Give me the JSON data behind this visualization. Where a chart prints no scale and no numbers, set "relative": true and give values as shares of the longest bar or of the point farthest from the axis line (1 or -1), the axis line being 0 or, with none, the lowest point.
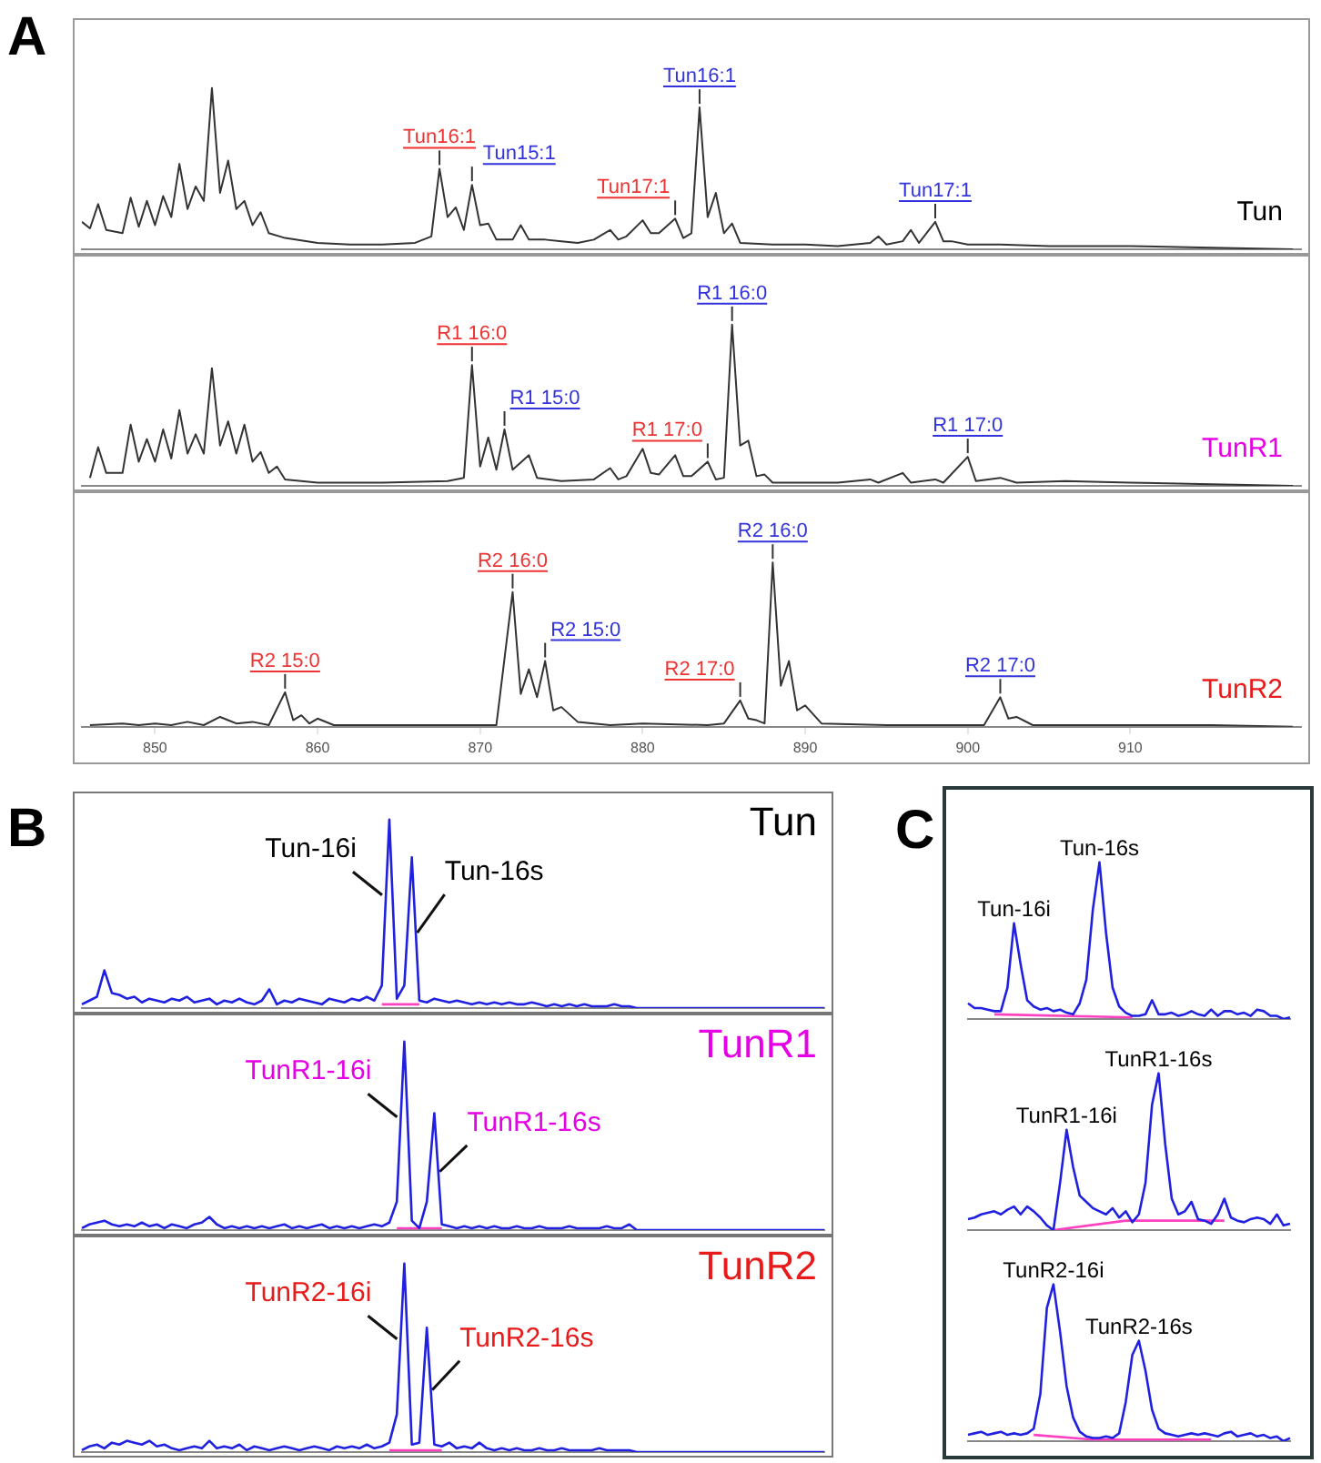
{
  "chart_data": [
    {
      "type": "line",
      "relative": true,
      "tick_labels": false,
      "marker": "none",
      "title": "A",
      "xlim": [
        845.5,
        920.5
      ],
      "xticks": [
        850,
        860,
        870,
        880,
        890,
        900,
        910
      ],
      "annotations": [
        {
          "text": "Tun16:1",
          "x": 867.5,
          "y": 0.5
        },
        {
          "text": "Tun15:1",
          "x": 869.5,
          "y": 0.4
        },
        {
          "text": "Tun17:1",
          "x": 882,
          "y": 0.19
        },
        {
          "text": "Tun16:1",
          "x": 883.5,
          "y": 0.88
        },
        {
          "text": "Tun17:1",
          "x": 898,
          "y": 0.17
        }
      ],
      "series": [
        {
          "name": "Tun",
          "color": "#333333",
          "x": [
            845.5,
            846,
            846.5,
            847,
            848,
            848.5,
            849,
            849.5,
            850,
            850.5,
            851,
            851.5,
            852,
            852.5,
            853,
            853.5,
            854,
            854.5,
            855,
            855.5,
            856,
            856.5,
            857,
            858,
            860,
            862,
            864,
            866,
            867,
            867.5,
            868,
            868.5,
            869,
            869.5,
            870,
            870.5,
            871,
            872,
            872.5,
            873,
            874,
            875,
            876,
            877,
            878,
            878.5,
            879,
            880,
            880.5,
            881,
            882,
            882.5,
            883,
            883.5,
            884,
            884.5,
            885,
            885.5,
            886,
            888,
            890,
            892,
            894,
            894.5,
            895,
            896,
            896.5,
            897,
            898,
            898.5,
            899,
            900,
            902,
            905,
            910,
            915,
            920
          ],
          "values": [
            0.17,
            0.13,
            0.28,
            0.12,
            0.1,
            0.32,
            0.14,
            0.3,
            0.15,
            0.33,
            0.2,
            0.53,
            0.25,
            0.39,
            0.3,
            1,
            0.35,
            0.55,
            0.25,
            0.3,
            0.15,
            0.23,
            0.1,
            0.07,
            0.04,
            0.03,
            0.03,
            0.04,
            0.08,
            0.5,
            0.2,
            0.26,
            0.12,
            0.4,
            0.15,
            0.16,
            0.06,
            0.06,
            0.15,
            0.06,
            0.06,
            0.05,
            0.04,
            0.06,
            0.12,
            0.06,
            0.08,
            0.18,
            0.1,
            0.1,
            0.19,
            0.07,
            0.1,
            0.88,
            0.2,
            0.35,
            0.1,
            0.16,
            0.04,
            0.03,
            0.03,
            0.02,
            0.04,
            0.08,
            0.03,
            0.05,
            0.12,
            0.04,
            0.17,
            0.05,
            0.05,
            0.03,
            0.03,
            0.02,
            0.02,
            0.01,
            0
          ]
        }
      ]
    },
    {
      "type": "line",
      "relative": true,
      "tick_labels": false,
      "marker": "none",
      "xlim": [
        845.5,
        920.5
      ],
      "xticks": [
        850,
        860,
        870,
        880,
        890,
        900,
        910
      ],
      "annotations": [
        {
          "text": "R1 16:0",
          "x": 869.5,
          "y": 0.75
        },
        {
          "text": "R1 15:0",
          "x": 871.5,
          "y": 0.35
        },
        {
          "text": "R1 17:0",
          "x": 884,
          "y": 0.15
        },
        {
          "text": "R1 16:0",
          "x": 885.5,
          "y": 1
        },
        {
          "text": "R1 17:0",
          "x": 900,
          "y": 0.18
        }
      ],
      "series": [
        {
          "name": "TunR1",
          "color": "#333333",
          "x": [
            846,
            846.5,
            847,
            848,
            848.5,
            849,
            849.5,
            850,
            850.5,
            851,
            851.5,
            852,
            852.5,
            853,
            853.5,
            854,
            854.5,
            855,
            855.5,
            856,
            856.5,
            857,
            857.5,
            858,
            860,
            864,
            868,
            869,
            869.5,
            870,
            870.5,
            871,
            871.5,
            872,
            873,
            873.5,
            875,
            877,
            878,
            878.5,
            879,
            880,
            880.5,
            881,
            882,
            882.5,
            883,
            884,
            884.5,
            885,
            885.5,
            886,
            886.5,
            887,
            887.5,
            888,
            890,
            892,
            894,
            894.5,
            896,
            896.5,
            898,
            898.5,
            900,
            900.5,
            902,
            903,
            906,
            910,
            915,
            920
          ],
          "values": [
            0.05,
            0.24,
            0.08,
            0.08,
            0.38,
            0.15,
            0.29,
            0.15,
            0.35,
            0.17,
            0.47,
            0.2,
            0.32,
            0.2,
            0.73,
            0.25,
            0.4,
            0.2,
            0.38,
            0.15,
            0.21,
            0.08,
            0.12,
            0.04,
            0.02,
            0.02,
            0.03,
            0.05,
            0.75,
            0.12,
            0.3,
            0.1,
            0.35,
            0.1,
            0.19,
            0.05,
            0.03,
            0.04,
            0.11,
            0.04,
            0.06,
            0.23,
            0.08,
            0.07,
            0.19,
            0.06,
            0.06,
            0.15,
            0.04,
            0.05,
            1,
            0.25,
            0.28,
            0.06,
            0.07,
            0.02,
            0.02,
            0.02,
            0.04,
            0.02,
            0.08,
            0.02,
            0.04,
            0.02,
            0.18,
            0.03,
            0.05,
            0.02,
            0.03,
            0.02,
            0.01,
            0
          ]
        }
      ]
    },
    {
      "type": "line",
      "relative": true,
      "marker": "none",
      "xlim": [
        845.5,
        920.5
      ],
      "xticks": [
        850,
        860,
        870,
        880,
        890,
        900,
        910
      ],
      "annotations": [
        {
          "text": "R2 15:0",
          "x": 858,
          "y": 0.21
        },
        {
          "text": "R2 16:0",
          "x": 872,
          "y": 0.82
        },
        {
          "text": "R2 15:0",
          "x": 874,
          "y": 0.4
        },
        {
          "text": "R2 17:0",
          "x": 886,
          "y": 0.16
        },
        {
          "text": "R2 16:0",
          "x": 888,
          "y": 1
        },
        {
          "text": "R2 17:0",
          "x": 902,
          "y": 0.18
        }
      ],
      "series": [
        {
          "name": "TunR2",
          "color": "#333333",
          "x": [
            846,
            848,
            849,
            850,
            851,
            852,
            853,
            854,
            855,
            856,
            857,
            858,
            858.5,
            859,
            859.5,
            860,
            861,
            864,
            868,
            871,
            872,
            872.5,
            873,
            873.5,
            874,
            874.5,
            875,
            876,
            878,
            880,
            884,
            885,
            886,
            886.5,
            887,
            887.5,
            888,
            888.5,
            889,
            889.5,
            890,
            891,
            895,
            900,
            901,
            902,
            902.5,
            903,
            904,
            910,
            915,
            920
          ],
          "values": [
            0.01,
            0.02,
            0.01,
            0.02,
            0.01,
            0.03,
            0.01,
            0.06,
            0.02,
            0.03,
            0.01,
            0.21,
            0.04,
            0.07,
            0.02,
            0.05,
            0.01,
            0.01,
            0.01,
            0.01,
            0.82,
            0.2,
            0.35,
            0.18,
            0.4,
            0.1,
            0.12,
            0.03,
            0.01,
            0.02,
            0.01,
            0.02,
            0.16,
            0.05,
            0.04,
            0.02,
            1,
            0.25,
            0.4,
            0.1,
            0.13,
            0.02,
            0.01,
            0.01,
            0.01,
            0.18,
            0.05,
            0.06,
            0.01,
            0.01,
            0.01,
            0
          ]
        }
      ]
    },
    {
      "type": "line",
      "relative": true,
      "tick_labels": false,
      "marker": "none",
      "title": "B",
      "annotations": [
        "Tun-16i",
        "Tun-16s"
      ],
      "categories": [
        null,
        null,
        null,
        null,
        null,
        null,
        null,
        null,
        null,
        null,
        null,
        null,
        null,
        null,
        null,
        null,
        null,
        null,
        null,
        null,
        null,
        null,
        null,
        null,
        null,
        null,
        null,
        null,
        null,
        null,
        null,
        null,
        null,
        null,
        null,
        null,
        null,
        null,
        null,
        null,
        null,
        null,
        null,
        null,
        null,
        null,
        null,
        null,
        null,
        null,
        null,
        null,
        null,
        null,
        null,
        null,
        null,
        null,
        null,
        null,
        null,
        null,
        null,
        null,
        null,
        null,
        null,
        null,
        null,
        null,
        null,
        null,
        null,
        null,
        null,
        null,
        null,
        null,
        null,
        null,
        null,
        null,
        null,
        null,
        null,
        null,
        null,
        null,
        null,
        null,
        null,
        null,
        null,
        null,
        null,
        null,
        null,
        null,
        null,
        null
      ],
      "series": [
        {
          "name": "Tun",
          "color": "#2020e0",
          "values": [
            0.02,
            0.04,
            0.06,
            0.2,
            0.08,
            0.07,
            0.05,
            0.06,
            0.03,
            0.05,
            0.04,
            0.03,
            0.05,
            0.04,
            0.06,
            0.03,
            0.04,
            0.05,
            0.02,
            0.04,
            0.03,
            0.05,
            0.03,
            0.02,
            0.04,
            0.1,
            0.02,
            0.04,
            0.03,
            0.05,
            0.04,
            0.03,
            0.02,
            0.05,
            0.04,
            0.03,
            0.05,
            0.04,
            0.06,
            0.04,
            0.12,
            1,
            0.05,
            0.12,
            0.8,
            0.04,
            0.03,
            0.05,
            0.04,
            0.03,
            0.04,
            0.03,
            0.02,
            0.03,
            0.02,
            0.03,
            0.02,
            0.03,
            0.02,
            0.02,
            0.03,
            0.02,
            0.01,
            0.02,
            0.01,
            0.02,
            0.01,
            0.02,
            0.01,
            0.01,
            0.01,
            0.02,
            0.01,
            0.01,
            0,
            0,
            0,
            0,
            0,
            0,
            0,
            0,
            0,
            0,
            0,
            0,
            0,
            0,
            0,
            0,
            0,
            0,
            0,
            0,
            0,
            0,
            0,
            0,
            0,
            0
          ]
        },
        {
          "color": "#ff40c0",
          "values": [
            null,
            null,
            null,
            null,
            null,
            null,
            null,
            null,
            null,
            null,
            null,
            null,
            null,
            null,
            null,
            null,
            null,
            null,
            null,
            null,
            null,
            null,
            null,
            null,
            null,
            null,
            null,
            null,
            null,
            null,
            null,
            null,
            null,
            null,
            null,
            null,
            null,
            null,
            null,
            null,
            0.02,
            null,
            null,
            null,
            null,
            0.02,
            null,
            null,
            null,
            null,
            null,
            null,
            null,
            null,
            null,
            null,
            null,
            null,
            null,
            null,
            null,
            null,
            null,
            null,
            null,
            null,
            null,
            null,
            null,
            null,
            null,
            null,
            null,
            null,
            null,
            null,
            null,
            null,
            null,
            null,
            null,
            null,
            null,
            null,
            null,
            null,
            null,
            null,
            null,
            null,
            null,
            null,
            null,
            null,
            null,
            null,
            null,
            null,
            null,
            null
          ]
        }
      ]
    },
    {
      "type": "line",
      "relative": true,
      "tick_labels": false,
      "marker": "none",
      "annotations": [
        "TunR1-16i",
        "TunR1-16s"
      ],
      "categories": [
        null,
        null,
        null,
        null,
        null,
        null,
        null,
        null,
        null,
        null,
        null,
        null,
        null,
        null,
        null,
        null,
        null,
        null,
        null,
        null,
        null,
        null,
        null,
        null,
        null,
        null,
        null,
        null,
        null,
        null,
        null,
        null,
        null,
        null,
        null,
        null,
        null,
        null,
        null,
        null,
        null,
        null,
        null,
        null,
        null,
        null,
        null,
        null,
        null,
        null,
        null,
        null,
        null,
        null,
        null,
        null,
        null,
        null,
        null,
        null,
        null,
        null,
        null,
        null,
        null,
        null,
        null,
        null,
        null,
        null,
        null,
        null,
        null,
        null,
        null,
        null,
        null,
        null,
        null,
        null,
        null,
        null,
        null,
        null,
        null,
        null,
        null,
        null,
        null,
        null,
        null,
        null,
        null,
        null,
        null,
        null,
        null,
        null,
        null,
        null
      ],
      "series": [
        {
          "name": "TunR1",
          "color": "#2020e0",
          "values": [
            0.01,
            0.03,
            0.04,
            0.05,
            0.03,
            0.02,
            0.03,
            0.02,
            0.04,
            0.02,
            0.03,
            0.01,
            0.03,
            0.02,
            0.01,
            0.03,
            0.04,
            0.07,
            0.03,
            0.01,
            0.02,
            0.01,
            0.02,
            0.01,
            0.02,
            0.01,
            0.02,
            0.03,
            0.01,
            0.02,
            0.01,
            0.02,
            0.03,
            0.01,
            0.02,
            0.01,
            0.02,
            0.01,
            0.02,
            0.03,
            0.02,
            0.04,
            0.15,
            1,
            0.05,
            0.01,
            0.15,
            0.62,
            0.03,
            0.02,
            0.01,
            0.02,
            0.01,
            0.02,
            0.01,
            0.02,
            0.01,
            0.01,
            0.02,
            0.01,
            0.01,
            0.02,
            0.01,
            0.01,
            0.01,
            0.02,
            0.01,
            0.01,
            0.01,
            0.01,
            0.02,
            0.01,
            0.01,
            0.03,
            0,
            0,
            0,
            0,
            0,
            0,
            0,
            0,
            0,
            0,
            0,
            0,
            0,
            0,
            0,
            0,
            0,
            0,
            0,
            0,
            0,
            0,
            0,
            0,
            0,
            0
          ]
        },
        {
          "color": "#ff40c0",
          "values": [
            null,
            null,
            null,
            null,
            null,
            null,
            null,
            null,
            null,
            null,
            null,
            null,
            null,
            null,
            null,
            null,
            null,
            null,
            null,
            null,
            null,
            null,
            null,
            null,
            null,
            null,
            null,
            null,
            null,
            null,
            null,
            null,
            null,
            null,
            null,
            null,
            null,
            null,
            null,
            null,
            null,
            null,
            0.01,
            null,
            null,
            null,
            null,
            null,
            0.01,
            null,
            null,
            null,
            null,
            null,
            null,
            null,
            null,
            null,
            null,
            null,
            null,
            null,
            null,
            null,
            null,
            null,
            null,
            null,
            null,
            null,
            null,
            null,
            null,
            null,
            null,
            null,
            null,
            null,
            null,
            null,
            null,
            null,
            null,
            null,
            null,
            null,
            null,
            null,
            null,
            null,
            null,
            null,
            null,
            null,
            null,
            null,
            null,
            null,
            null,
            null
          ]
        }
      ]
    },
    {
      "type": "line",
      "relative": true,
      "tick_labels": false,
      "marker": "none",
      "annotations": [
        "TunR2-16i",
        "TunR2-16s"
      ],
      "categories": [
        null,
        null,
        null,
        null,
        null,
        null,
        null,
        null,
        null,
        null,
        null,
        null,
        null,
        null,
        null,
        null,
        null,
        null,
        null,
        null,
        null,
        null,
        null,
        null,
        null,
        null,
        null,
        null,
        null,
        null,
        null,
        null,
        null,
        null,
        null,
        null,
        null,
        null,
        null,
        null,
        null,
        null,
        null,
        null,
        null,
        null,
        null,
        null,
        null,
        null,
        null,
        null,
        null,
        null,
        null,
        null,
        null,
        null,
        null,
        null,
        null,
        null,
        null,
        null,
        null,
        null,
        null,
        null,
        null,
        null,
        null,
        null,
        null,
        null,
        null,
        null,
        null,
        null,
        null,
        null,
        null,
        null,
        null,
        null,
        null,
        null,
        null,
        null,
        null,
        null,
        null,
        null,
        null,
        null,
        null,
        null,
        null,
        null,
        null,
        null
      ],
      "series": [
        {
          "name": "TunR2",
          "color": "#2020e0",
          "values": [
            0.01,
            0.03,
            0.04,
            0.02,
            0.05,
            0.04,
            0.06,
            0.05,
            0.04,
            0.06,
            0.03,
            0.04,
            0.02,
            0.01,
            0.02,
            0.03,
            0.02,
            0.06,
            0.02,
            0.03,
            0.02,
            0.04,
            0.01,
            0.03,
            0.02,
            0.01,
            0.02,
            0.03,
            0.02,
            0.01,
            0.02,
            0.03,
            0.02,
            0.01,
            0.03,
            0.02,
            0.03,
            0.02,
            0.04,
            0.02,
            0.03,
            0.05,
            0.2,
            1,
            0.04,
            0.05,
            0.66,
            0.04,
            0.03,
            0.05,
            0.02,
            0.03,
            0.02,
            0.05,
            0.02,
            0.01,
            0.02,
            0.01,
            0.02,
            0.01,
            0.01,
            0.02,
            0.01,
            0.01,
            0.02,
            0.01,
            0.01,
            0.01,
            0.01,
            0.02,
            0.01,
            0.01,
            0.01,
            0.01,
            0,
            0,
            0,
            0,
            0,
            0,
            0,
            0,
            0,
            0,
            0,
            0,
            0,
            0,
            0,
            0,
            0,
            0,
            0,
            0,
            0,
            0,
            0,
            0,
            0,
            0
          ]
        },
        {
          "color": "#ff40c0",
          "values": [
            null,
            null,
            null,
            null,
            null,
            null,
            null,
            null,
            null,
            null,
            null,
            null,
            null,
            null,
            null,
            null,
            null,
            null,
            null,
            null,
            null,
            null,
            null,
            null,
            null,
            null,
            null,
            null,
            null,
            null,
            null,
            null,
            null,
            null,
            null,
            null,
            null,
            null,
            null,
            null,
            null,
            0.01,
            null,
            null,
            null,
            null,
            null,
            null,
            0.01,
            null,
            null,
            null,
            null,
            null,
            null,
            null,
            null,
            null,
            null,
            null,
            null,
            null,
            null,
            null,
            null,
            null,
            null,
            null,
            null,
            null,
            null,
            null,
            null,
            null,
            null,
            null,
            null,
            null,
            null,
            null,
            null,
            null,
            null,
            null,
            null,
            null,
            null,
            null,
            null,
            null,
            null,
            null,
            null,
            null,
            null,
            null,
            null,
            null,
            null,
            null
          ]
        }
      ]
    },
    {
      "type": "line",
      "relative": true,
      "tick_labels": false,
      "marker": "none",
      "title": "C",
      "annotations": [
        "Tun-16i",
        "Tun-16s"
      ],
      "categories": [
        null,
        null,
        null,
        null,
        null,
        null,
        null,
        null,
        null,
        null,
        null,
        null,
        null,
        null,
        null,
        null,
        null,
        null,
        null,
        null,
        null,
        null,
        null,
        null,
        null,
        null,
        null,
        null,
        null,
        null,
        null,
        null,
        null,
        null,
        null,
        null,
        null,
        null,
        null,
        null,
        null,
        null,
        null,
        null,
        null,
        null,
        null,
        null,
        null,
        null
      ],
      "series": [
        {
          "color": "#2020e0",
          "values": [
            0.1,
            0.07,
            0.07,
            0.06,
            0.05,
            0.05,
            0.2,
            0.61,
            0.35,
            0.12,
            0.08,
            0.06,
            0.07,
            0.05,
            0.06,
            0.04,
            0.03,
            0.1,
            0.25,
            0.7,
            1,
            0.55,
            0.2,
            0.08,
            0.04,
            0.02,
            0.02,
            0.03,
            0.12,
            0.03,
            0.03,
            0.04,
            0.02,
            0.03,
            0.05,
            0.03,
            0.02,
            0.06,
            0.02,
            0.05,
            0.05,
            0.03,
            0.04,
            0.02,
            0.06,
            0.05,
            0.02,
            0.02,
            0,
            0.01
          ]
        },
        {
          "color": "#ff40c0",
          "values": [
            null,
            null,
            null,
            null,
            0.03,
            null,
            null,
            null,
            null,
            null,
            null,
            null,
            null,
            null,
            null,
            null,
            null,
            null,
            null,
            null,
            null,
            null,
            null,
            null,
            null,
            0.01,
            null,
            null,
            null,
            null,
            null,
            null,
            null,
            null,
            null,
            null,
            null,
            null,
            null,
            null,
            null,
            null,
            null,
            null,
            null,
            null,
            null,
            null,
            null,
            null
          ]
        }
      ]
    },
    {
      "type": "line",
      "relative": true,
      "tick_labels": false,
      "marker": "none",
      "annotations": [
        "TunR1-16i",
        "TunR1-16s"
      ],
      "categories": [
        null,
        null,
        null,
        null,
        null,
        null,
        null,
        null,
        null,
        null,
        null,
        null,
        null,
        null,
        null,
        null,
        null,
        null,
        null,
        null,
        null,
        null,
        null,
        null,
        null,
        null,
        null,
        null,
        null,
        null,
        null,
        null,
        null,
        null,
        null,
        null,
        null,
        null,
        null,
        null,
        null,
        null,
        null,
        null,
        null,
        null,
        null,
        null,
        null,
        null
      ],
      "series": [
        {
          "color": "#2020e0",
          "values": [
            0.07,
            0.08,
            0.1,
            0.11,
            0.12,
            0.1,
            0.13,
            0.15,
            0.1,
            0.15,
            0.12,
            0.08,
            0.03,
            0,
            0.3,
            0.64,
            0.4,
            0.22,
            0.18,
            0.14,
            0.12,
            0.1,
            0.14,
            0.08,
            0.12,
            0.05,
            0.1,
            0.3,
            0.8,
            1,
            0.55,
            0.2,
            0.1,
            0.12,
            0.18,
            0.07,
            0.06,
            0.04,
            0.1,
            0.2,
            0.08,
            0.06,
            0.05,
            0.07,
            0.08,
            0.07,
            0.04,
            0.1,
            0.03,
            0.04
          ]
        },
        {
          "color": "#ff40c0",
          "values": [
            null,
            null,
            null,
            null,
            null,
            null,
            null,
            null,
            null,
            null,
            null,
            null,
            null,
            0,
            null,
            null,
            null,
            null,
            null,
            null,
            null,
            null,
            null,
            null,
            0.06,
            null,
            null,
            null,
            null,
            null,
            null,
            null,
            null,
            null,
            null,
            null,
            null,
            null,
            null,
            0.06,
            null,
            null,
            null,
            null,
            null,
            null,
            null,
            null,
            null,
            null
          ]
        }
      ]
    },
    {
      "type": "line",
      "relative": true,
      "tick_labels": false,
      "marker": "none",
      "annotations": [
        "TunR2-16i",
        "TunR2-16s"
      ],
      "categories": [
        null,
        null,
        null,
        null,
        null,
        null,
        null,
        null,
        null,
        null,
        null,
        null,
        null,
        null,
        null,
        null,
        null,
        null,
        null,
        null,
        null,
        null,
        null,
        null,
        null,
        null,
        null,
        null,
        null,
        null,
        null,
        null,
        null,
        null,
        null,
        null,
        null,
        null,
        null,
        null,
        null,
        null,
        null,
        null,
        null,
        null,
        null,
        null,
        null,
        null
      ],
      "series": [
        {
          "color": "#2020e0",
          "values": [
            0.04,
            0.05,
            0.06,
            0.04,
            0.05,
            0.06,
            0.04,
            0.05,
            0.04,
            0.05,
            0.08,
            0.3,
            0.85,
            1,
            0.7,
            0.35,
            0.15,
            0.06,
            0.03,
            0.02,
            0.02,
            0.03,
            0.02,
            0.05,
            0.25,
            0.55,
            0.64,
            0.45,
            0.2,
            0.08,
            0.05,
            0.04,
            0.03,
            0.04,
            0.05,
            0.04,
            0.05,
            0.04,
            0.03,
            0.05,
            0.06,
            0.03,
            0.04,
            0.05,
            0.03,
            0.04,
            0.02,
            0.03,
            0,
            0.02
          ]
        },
        {
          "color": "#ff40c0",
          "values": [
            null,
            null,
            null,
            null,
            null,
            null,
            null,
            null,
            null,
            null,
            0.04,
            null,
            null,
            null,
            null,
            null,
            null,
            null,
            null,
            0.01,
            null,
            null,
            null,
            null,
            null,
            null,
            null,
            null,
            null,
            null,
            null,
            null,
            null,
            null,
            null,
            null,
            null,
            0.01,
            null,
            null,
            null,
            null,
            null,
            null,
            null,
            null,
            null,
            null,
            null,
            null
          ]
        }
      ]
    }
  ]
}
